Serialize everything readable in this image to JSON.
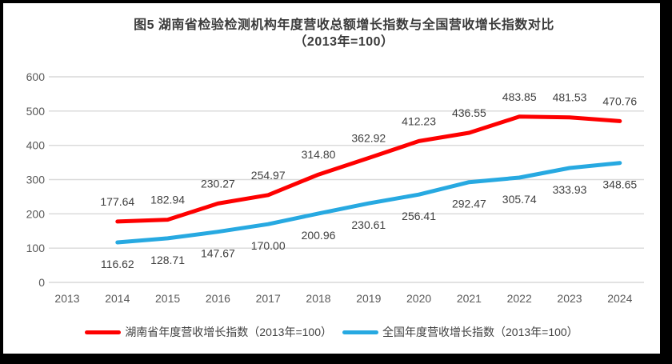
{
  "frame": {
    "border_color": "#000000",
    "background_color": "#FFFFFF"
  },
  "chart_data": {
    "type": "line",
    "title": "图5 湖南省检验检测机构年度营收总额增长指数与全国营收增长指数对比",
    "subtitle": "（2013年=100）",
    "categories": [
      "2013",
      "2014",
      "2015",
      "2016",
      "2017",
      "2018",
      "2019",
      "2020",
      "2021",
      "2022",
      "2023",
      "2024"
    ],
    "ylim": [
      0,
      600
    ],
    "yticks": [
      0,
      100,
      200,
      300,
      400,
      500,
      600
    ],
    "grid": "horizontal-only",
    "legend_position": "bottom",
    "axis_tick_color": "#595959",
    "gridline_color": "#D9D9D9",
    "data_label_color": "#3F3F3F",
    "series": [
      {
        "name": "湖南省年度营收增长指数（2013年=100）",
        "color": "#FE0000",
        "label_position": "above",
        "values": [
          null,
          177.64,
          182.94,
          230.27,
          254.97,
          314.8,
          362.92,
          412.23,
          436.55,
          483.85,
          481.53,
          470.76
        ],
        "data_labels": [
          "177.64",
          "182.94",
          "230.27",
          "254.97",
          "314.80",
          "362.92",
          "412.23",
          "436.55",
          "483.85",
          "481.53",
          "470.76"
        ]
      },
      {
        "name": "全国年度营收增长指数（2013年=100）",
        "color": "#27A9E1",
        "label_position": "below",
        "values": [
          null,
          116.62,
          128.71,
          147.67,
          170.0,
          200.96,
          230.61,
          256.41,
          292.47,
          305.74,
          333.93,
          348.65
        ],
        "data_labels": [
          "116.62",
          "128.71",
          "147.67",
          "170.00",
          "200.96",
          "230.61",
          "256.41",
          "292.47",
          "305.74",
          "333.93",
          "348.65"
        ]
      }
    ]
  }
}
